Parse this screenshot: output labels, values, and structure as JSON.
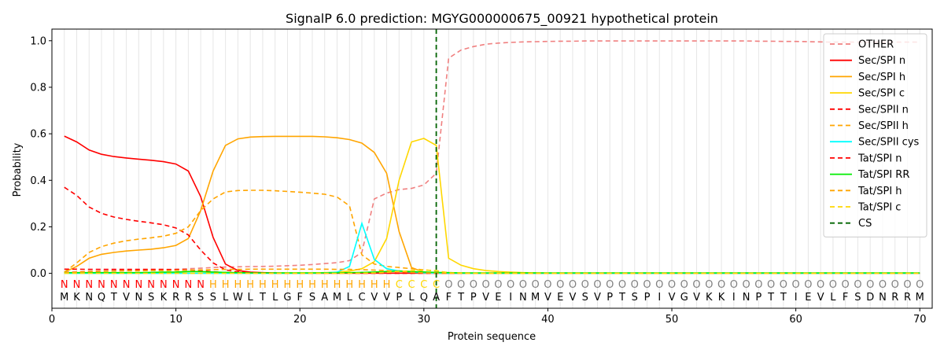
{
  "chart_data": {
    "type": "line",
    "title": "SignalP 6.0 prediction: MGYG000000675_00921 hypothetical protein",
    "xlabel": "Protein sequence",
    "ylabel": "Probability",
    "xlim": [
      0,
      71
    ],
    "ylim": [
      -0.15,
      1.05
    ],
    "xticks": [
      0,
      10,
      20,
      30,
      40,
      50,
      60,
      70
    ],
    "yticks": [
      0.0,
      0.2,
      0.4,
      0.6,
      0.8,
      1.0
    ],
    "vertical_grid_per_position": true,
    "legend_position": "top-right",
    "sequence": [
      "M",
      "K",
      "N",
      "Q",
      "T",
      "V",
      "N",
      "S",
      "K",
      "R",
      "R",
      "S",
      "S",
      "L",
      "W",
      "L",
      "T",
      "L",
      "G",
      "F",
      "S",
      "A",
      "M",
      "L",
      "C",
      "V",
      "V",
      "P",
      "L",
      "Q",
      "A",
      "F",
      "T",
      "P",
      "V",
      "E",
      "I",
      "N",
      "M",
      "V",
      "E",
      "V",
      "S",
      "V",
      "P",
      "T",
      "S",
      "P",
      "I",
      "V",
      "G",
      "V",
      "K",
      "K",
      "I",
      "N",
      "P",
      "T",
      "T",
      "I",
      "E",
      "V",
      "L",
      "F",
      "S",
      "D",
      "N",
      "R",
      "R",
      "M"
    ],
    "region_labels": [
      "N",
      "N",
      "N",
      "N",
      "N",
      "N",
      "N",
      "N",
      "N",
      "N",
      "N",
      "N",
      "H",
      "H",
      "H",
      "H",
      "H",
      "H",
      "H",
      "H",
      "H",
      "H",
      "H",
      "H",
      "H",
      "H",
      "H",
      "C",
      "C",
      "C",
      "C",
      "O",
      "O",
      "O",
      "O",
      "O",
      "O",
      "O",
      "O",
      "O",
      "O",
      "O",
      "O",
      "O",
      "O",
      "O",
      "O",
      "O",
      "O",
      "O",
      "O",
      "O",
      "O",
      "O",
      "O",
      "O",
      "O",
      "O",
      "O",
      "O",
      "O",
      "O",
      "O",
      "O",
      "O",
      "O",
      "O",
      "O",
      "O",
      "O"
    ],
    "region_colors": {
      "N": "#ff0000",
      "H": "#ffa500",
      "C": "#ffd700",
      "O": "#808080"
    },
    "cs_position": 31,
    "series": [
      {
        "name": "OTHER",
        "color": "#f08080",
        "dash": "6,4",
        "values": [
          0.005,
          0.007,
          0.009,
          0.01,
          0.012,
          0.013,
          0.014,
          0.015,
          0.016,
          0.018,
          0.02,
          0.022,
          0.025,
          0.027,
          0.028,
          0.029,
          0.03,
          0.031,
          0.033,
          0.035,
          0.038,
          0.042,
          0.046,
          0.055,
          0.09,
          0.32,
          0.345,
          0.36,
          0.365,
          0.38,
          0.43,
          0.925,
          0.96,
          0.975,
          0.985,
          0.99,
          0.993,
          0.995,
          0.996,
          0.997,
          0.998,
          0.998,
          0.999,
          0.999,
          0.999,
          0.999,
          0.999,
          0.999,
          0.999,
          0.999,
          0.999,
          0.999,
          0.999,
          0.999,
          0.999,
          0.999,
          0.998,
          0.998,
          0.997,
          0.997,
          0.996,
          0.995,
          0.994,
          0.994,
          0.994,
          0.994,
          0.994,
          0.994,
          0.994,
          0.994
        ]
      },
      {
        "name": "Sec/SPI n",
        "color": "#ff0000",
        "dash": "",
        "values": [
          0.59,
          0.565,
          0.53,
          0.512,
          0.502,
          0.496,
          0.491,
          0.486,
          0.48,
          0.47,
          0.44,
          0.33,
          0.155,
          0.04,
          0.012,
          0.005,
          0.003,
          0.002,
          0.001,
          0.001,
          0.001,
          0.001,
          0.001,
          0.001,
          0.001,
          0.001,
          0.001,
          0.001,
          0.001,
          0.001,
          0.001,
          0,
          0,
          0,
          0,
          0,
          0,
          0,
          0,
          0,
          0,
          0,
          0,
          0,
          0,
          0,
          0,
          0,
          0,
          0,
          0,
          0,
          0,
          0,
          0,
          0,
          0,
          0,
          0,
          0,
          0,
          0,
          0,
          0,
          0,
          0,
          0,
          0,
          0,
          0
        ]
      },
      {
        "name": "Sec/SPI h",
        "color": "#ffa500",
        "dash": "",
        "values": [
          0.005,
          0.03,
          0.065,
          0.082,
          0.09,
          0.096,
          0.1,
          0.104,
          0.11,
          0.12,
          0.15,
          0.27,
          0.44,
          0.55,
          0.578,
          0.586,
          0.588,
          0.589,
          0.589,
          0.589,
          0.589,
          0.587,
          0.583,
          0.575,
          0.56,
          0.52,
          0.43,
          0.18,
          0.025,
          0.005,
          0.003,
          0.001,
          0.001,
          0.001,
          0.001,
          0,
          0,
          0,
          0,
          0,
          0,
          0,
          0,
          0,
          0,
          0,
          0,
          0,
          0,
          0,
          0,
          0,
          0,
          0,
          0,
          0,
          0,
          0,
          0,
          0,
          0,
          0,
          0,
          0,
          0,
          0,
          0,
          0,
          0,
          0
        ]
      },
      {
        "name": "Sec/SPI c",
        "color": "#ffd700",
        "dash": "",
        "values": [
          0.001,
          0.001,
          0.001,
          0.001,
          0.001,
          0.001,
          0.001,
          0.001,
          0.001,
          0.001,
          0.001,
          0.001,
          0.001,
          0.001,
          0.001,
          0.001,
          0.001,
          0.001,
          0.002,
          0.002,
          0.002,
          0.003,
          0.005,
          0.01,
          0.02,
          0.05,
          0.15,
          0.4,
          0.565,
          0.58,
          0.55,
          0.065,
          0.035,
          0.02,
          0.012,
          0.008,
          0.005,
          0.003,
          0.002,
          0.001,
          0.001,
          0.001,
          0.001,
          0.001,
          0.001,
          0.001,
          0.001,
          0.001,
          0.001,
          0.001,
          0.001,
          0.001,
          0.001,
          0.001,
          0.001,
          0.001,
          0.001,
          0.001,
          0.001,
          0.001,
          0.001,
          0.001,
          0.001,
          0.001,
          0.001,
          0.001,
          0.001,
          0.001,
          0.001,
          0.001
        ]
      },
      {
        "name": "Sec/SPII n",
        "color": "#ff0000",
        "dash": "6,4",
        "values": [
          0.37,
          0.335,
          0.285,
          0.258,
          0.242,
          0.232,
          0.224,
          0.217,
          0.209,
          0.195,
          0.165,
          0.1,
          0.045,
          0.015,
          0.006,
          0.003,
          0.002,
          0.001,
          0.001,
          0.001,
          0.001,
          0.001,
          0.001,
          0.001,
          0.001,
          0.001,
          0.001,
          0.001,
          0.001,
          0.001,
          0.001,
          0,
          0,
          0,
          0,
          0,
          0,
          0,
          0,
          0,
          0,
          0,
          0,
          0,
          0,
          0,
          0,
          0,
          0,
          0,
          0,
          0,
          0,
          0,
          0,
          0,
          0,
          0,
          0,
          0,
          0,
          0,
          0,
          0,
          0,
          0,
          0,
          0,
          0,
          0
        ]
      },
      {
        "name": "Sec/SPII h",
        "color": "#ffa500",
        "dash": "6,4",
        "values": [
          0.005,
          0.045,
          0.09,
          0.115,
          0.13,
          0.14,
          0.147,
          0.153,
          0.16,
          0.172,
          0.2,
          0.27,
          0.32,
          0.35,
          0.356,
          0.357,
          0.357,
          0.355,
          0.352,
          0.349,
          0.345,
          0.34,
          0.328,
          0.29,
          0.08,
          0.04,
          0.03,
          0.025,
          0.02,
          0.015,
          0.01,
          0.003,
          0.002,
          0.001,
          0.001,
          0,
          0,
          0,
          0,
          0,
          0,
          0,
          0,
          0,
          0,
          0,
          0,
          0,
          0,
          0,
          0,
          0,
          0,
          0,
          0,
          0,
          0,
          0,
          0,
          0,
          0,
          0,
          0,
          0,
          0,
          0,
          0,
          0,
          0,
          0
        ]
      },
      {
        "name": "Sec/SPII cys",
        "color": "#00ffff",
        "dash": "",
        "values": [
          0,
          0,
          0,
          0,
          0,
          0,
          0,
          0,
          0,
          0,
          0,
          0,
          0,
          0,
          0,
          0,
          0,
          0,
          0,
          0,
          0,
          0.002,
          0.005,
          0.03,
          0.215,
          0.06,
          0.02,
          0.01,
          0.005,
          0.002,
          0.001,
          0,
          0,
          0,
          0,
          0,
          0,
          0,
          0,
          0,
          0,
          0,
          0,
          0,
          0,
          0,
          0,
          0,
          0,
          0,
          0,
          0,
          0,
          0,
          0,
          0,
          0,
          0,
          0,
          0,
          0,
          0,
          0,
          0,
          0,
          0,
          0,
          0,
          0,
          0
        ]
      },
      {
        "name": "Tat/SPI n",
        "color": "#ff0000",
        "dash": "6,4",
        "values": [
          0.018,
          0.018,
          0.017,
          0.017,
          0.017,
          0.017,
          0.017,
          0.017,
          0.017,
          0.016,
          0.015,
          0.012,
          0.007,
          0.003,
          0.001,
          0.001,
          0.001,
          0,
          0,
          0,
          0,
          0,
          0,
          0,
          0,
          0,
          0,
          0,
          0,
          0,
          0,
          0,
          0,
          0,
          0,
          0,
          0,
          0,
          0,
          0,
          0,
          0,
          0,
          0,
          0,
          0,
          0,
          0,
          0,
          0,
          0,
          0,
          0,
          0,
          0,
          0,
          0,
          0,
          0,
          0,
          0,
          0,
          0,
          0,
          0,
          0,
          0,
          0,
          0,
          0
        ]
      },
      {
        "name": "Tat/SPI RR",
        "color": "#00ee00",
        "dash": "",
        "values": [
          0.003,
          0.003,
          0.003,
          0.003,
          0.003,
          0.003,
          0.003,
          0.004,
          0.005,
          0.006,
          0.008,
          0.008,
          0.006,
          0.004,
          0.003,
          0.002,
          0.002,
          0.002,
          0.002,
          0.002,
          0.002,
          0.002,
          0.002,
          0.003,
          0.004,
          0.006,
          0.008,
          0.01,
          0.008,
          0.006,
          0.004,
          0.003,
          0.002,
          0.002,
          0.002,
          0.002,
          0.002,
          0.002,
          0.002,
          0.002,
          0.002,
          0.002,
          0.002,
          0.002,
          0.002,
          0.002,
          0.002,
          0.002,
          0.002,
          0.002,
          0.002,
          0.002,
          0.002,
          0.002,
          0.002,
          0.002,
          0.002,
          0.002,
          0.002,
          0.002,
          0.002,
          0.002,
          0.002,
          0.002,
          0.002,
          0.002,
          0.002,
          0.002,
          0.002,
          0.002
        ]
      },
      {
        "name": "Tat/SPI h",
        "color": "#ffa500",
        "dash": "6,4",
        "values": [
          0.002,
          0.005,
          0.008,
          0.009,
          0.01,
          0.011,
          0.011,
          0.012,
          0.012,
          0.013,
          0.014,
          0.015,
          0.016,
          0.017,
          0.017,
          0.018,
          0.018,
          0.018,
          0.018,
          0.018,
          0.018,
          0.018,
          0.017,
          0.017,
          0.016,
          0.014,
          0.012,
          0.008,
          0.004,
          0.002,
          0.001,
          0,
          0,
          0,
          0,
          0,
          0,
          0,
          0,
          0,
          0,
          0,
          0,
          0,
          0,
          0,
          0,
          0,
          0,
          0,
          0,
          0,
          0,
          0,
          0,
          0,
          0,
          0,
          0,
          0,
          0,
          0,
          0,
          0,
          0,
          0,
          0,
          0,
          0,
          0
        ]
      },
      {
        "name": "Tat/SPI c",
        "color": "#ffd700",
        "dash": "6,4",
        "values": [
          0,
          0,
          0,
          0,
          0,
          0,
          0,
          0,
          0,
          0,
          0,
          0,
          0,
          0,
          0,
          0,
          0,
          0,
          0,
          0,
          0,
          0,
          0,
          0,
          0.001,
          0.002,
          0.004,
          0.008,
          0.012,
          0.014,
          0.012,
          0.002,
          0.001,
          0,
          0,
          0,
          0,
          0,
          0,
          0,
          0,
          0,
          0,
          0,
          0,
          0,
          0,
          0,
          0,
          0,
          0,
          0,
          0,
          0,
          0,
          0,
          0,
          0,
          0,
          0,
          0,
          0,
          0,
          0,
          0,
          0,
          0,
          0,
          0,
          0
        ]
      },
      {
        "name": "CS",
        "color": "#006400",
        "dash": "6,4",
        "values": []
      }
    ]
  }
}
